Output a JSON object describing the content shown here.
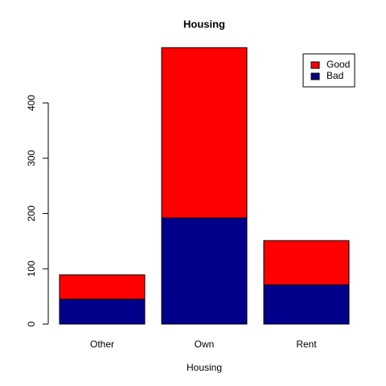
{
  "chart_data": {
    "type": "stacked_bar",
    "title": "Housing",
    "x_label": "Housing",
    "categories": [
      "Other",
      "Own",
      "Rent"
    ],
    "series": [
      {
        "name": "Bad",
        "color": "#00008b",
        "values": [
          45,
          192,
          71
        ]
      },
      {
        "name": "Good",
        "color": "#ff0000",
        "values": [
          44,
          308,
          80
        ]
      }
    ],
    "ylim": [
      0,
      500
    ],
    "yticks": [
      0,
      100,
      200,
      300,
      400
    ],
    "legend": "top-right"
  }
}
